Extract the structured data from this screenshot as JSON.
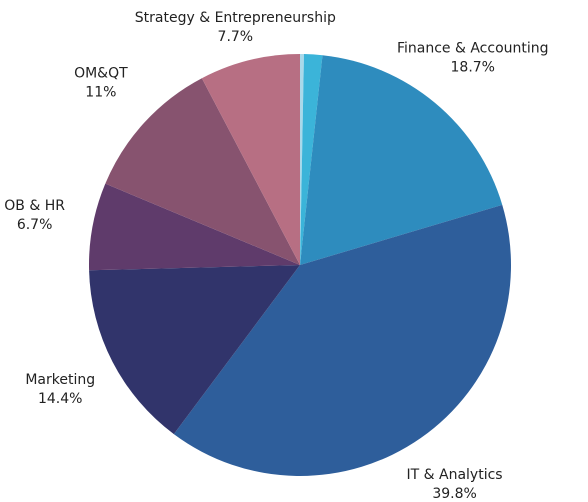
{
  "chart_data": {
    "type": "pie",
    "categories": [
      null,
      null,
      "Finance & Accounting",
      "IT & Analytics",
      "Marketing",
      "OB & HR",
      "OM&QT",
      "Strategy & Entrepreneurship"
    ],
    "values": [
      0.3,
      1.4,
      18.7,
      39.8,
      14.4,
      6.7,
      11,
      7.7
    ],
    "value_labels": [
      null,
      null,
      "18.7%",
      "39.8%",
      "14.4%",
      "6.7%",
      "11%",
      "7.7%"
    ],
    "colors": [
      "#a9d9ea",
      "#3bb4d9",
      "#2e8cbe",
      "#2e5e9b",
      "#31346b",
      "#5f3b6b",
      "#87536f",
      "#b76f83"
    ]
  }
}
